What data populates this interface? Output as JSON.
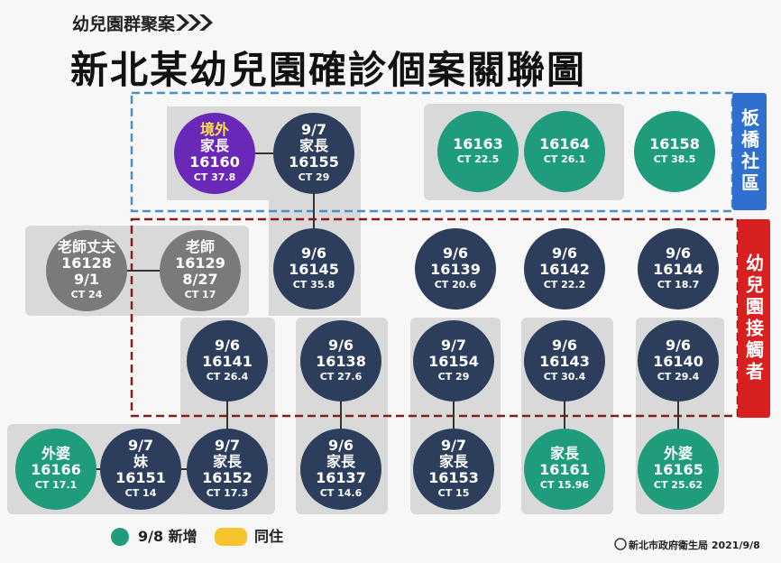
{
  "header": {
    "subtitle": "幼兒園群聚案",
    "title": "新北某幼兒園確診個案關聯圖"
  },
  "groups": [
    {
      "label": "板橋社區"
    },
    {
      "label": "幼兒園接觸者"
    }
  ],
  "nodes": [
    {
      "lines": [
        "境外",
        "家長",
        "16160",
        "CT 37.8"
      ]
    },
    {
      "lines": [
        "9/7",
        "家長",
        "16155",
        "CT 29"
      ]
    },
    {
      "lines": [
        "16163",
        "CT 22.5"
      ]
    },
    {
      "lines": [
        "16164",
        "CT 26.1"
      ]
    },
    {
      "lines": [
        "16158",
        "CT 38.5"
      ]
    },
    {
      "lines": [
        "老師丈夫",
        "16128",
        "9/1",
        "CT 24"
      ]
    },
    {
      "lines": [
        "老師",
        "16129",
        "8/27",
        "CT 17"
      ]
    },
    {
      "lines": [
        "9/6",
        "16145",
        "CT 35.8"
      ]
    },
    {
      "lines": [
        "9/6",
        "16139",
        "CT 20.6"
      ]
    },
    {
      "lines": [
        "9/6",
        "16142",
        "CT 22.2"
      ]
    },
    {
      "lines": [
        "9/6",
        "16144",
        "CT 18.7"
      ]
    },
    {
      "lines": [
        "9/6",
        "16141",
        "CT 26.4"
      ]
    },
    {
      "lines": [
        "9/6",
        "16138",
        "CT 27.6"
      ]
    },
    {
      "lines": [
        "9/7",
        "16154",
        "CT 29"
      ]
    },
    {
      "lines": [
        "9/6",
        "16143",
        "CT 30.4"
      ]
    },
    {
      "lines": [
        "9/6",
        "16140",
        "CT 29.4"
      ]
    },
    {
      "lines": [
        "外婆",
        "16166",
        "CT 17.1"
      ]
    },
    {
      "lines": [
        "9/7",
        "妹",
        "16151",
        "CT 14"
      ]
    },
    {
      "lines": [
        "9/7",
        "家長",
        "16152",
        "CT 17.3"
      ]
    },
    {
      "lines": [
        "9/6",
        "家長",
        "16137",
        "CT 14.6"
      ]
    },
    {
      "lines": [
        "9/7",
        "家長",
        "16153",
        "CT 15"
      ]
    },
    {
      "lines": [
        "家長",
        "16161",
        "CT 15.96"
      ]
    },
    {
      "lines": [
        "外婆",
        "16165",
        "CT 25.62"
      ]
    }
  ],
  "legend": [
    {
      "label": "9/8 新增"
    },
    {
      "label": "同住"
    }
  ],
  "footer": "新北市政府衛生局 2021/9/8"
}
